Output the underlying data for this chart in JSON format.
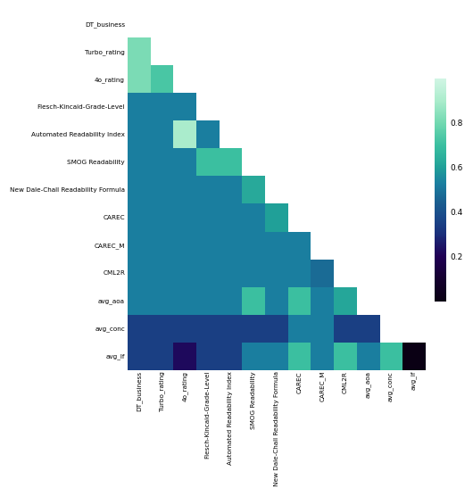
{
  "labels": [
    "DT_business",
    "Turbo_rating",
    "4o_rating",
    "Flesch-Kincaid-Grade-Level",
    "Automated Readability Index",
    "SMOG Readability",
    "New Dale-Chall Readability Formula",
    "CAREC",
    "CAREC_M",
    "CML2R",
    "avg_aoa",
    "avg_conc",
    "avg_lf"
  ],
  "matrix": [
    [
      null,
      null,
      null,
      null,
      null,
      null,
      null,
      null,
      null,
      null,
      null,
      null,
      null
    ],
    [
      0.82,
      null,
      null,
      null,
      null,
      null,
      null,
      null,
      null,
      null,
      null,
      null,
      null
    ],
    [
      0.82,
      0.73,
      null,
      null,
      null,
      null,
      null,
      null,
      null,
      null,
      null,
      null,
      null
    ],
    [
      0.53,
      0.53,
      0.53,
      null,
      null,
      null,
      null,
      null,
      null,
      null,
      null,
      null,
      null
    ],
    [
      0.53,
      0.53,
      0.9,
      0.53,
      null,
      null,
      null,
      null,
      null,
      null,
      null,
      null,
      null
    ],
    [
      0.53,
      0.53,
      0.53,
      0.7,
      0.7,
      null,
      null,
      null,
      null,
      null,
      null,
      null,
      null
    ],
    [
      0.53,
      0.53,
      0.53,
      0.53,
      0.53,
      0.63,
      null,
      null,
      null,
      null,
      null,
      null,
      null
    ],
    [
      0.53,
      0.53,
      0.53,
      0.53,
      0.53,
      0.53,
      0.6,
      null,
      null,
      null,
      null,
      null,
      null
    ],
    [
      0.53,
      0.53,
      0.53,
      0.53,
      0.53,
      0.53,
      0.53,
      0.53,
      null,
      null,
      null,
      null,
      null
    ],
    [
      0.53,
      0.53,
      0.53,
      0.53,
      0.53,
      0.53,
      0.53,
      0.53,
      0.48,
      null,
      null,
      null,
      null
    ],
    [
      0.53,
      0.53,
      0.53,
      0.53,
      0.53,
      0.7,
      0.53,
      0.7,
      0.53,
      0.62,
      null,
      null,
      null
    ],
    [
      0.35,
      0.35,
      0.35,
      0.35,
      0.35,
      0.35,
      0.35,
      0.53,
      0.53,
      0.35,
      0.35,
      null,
      null
    ],
    [
      0.35,
      0.35,
      0.22,
      0.35,
      0.35,
      0.53,
      0.53,
      0.7,
      0.53,
      0.7,
      0.53,
      0.7,
      0.0
    ]
  ],
  "colorbar_ticks": [
    0.2,
    0.4,
    0.6,
    0.8
  ],
  "vmin": 0.0,
  "vmax": 1.0,
  "figsize": [
    5.3,
    5.56
  ],
  "dpi": 100,
  "cmap_nodes": [
    [
      0.0,
      "#0a0014"
    ],
    [
      0.1,
      "#150030"
    ],
    [
      0.2,
      "#200055"
    ],
    [
      0.3,
      "#1a2e7a"
    ],
    [
      0.38,
      "#1a4a8a"
    ],
    [
      0.45,
      "#1a6090"
    ],
    [
      0.53,
      "#1a7fa0"
    ],
    [
      0.6,
      "#20a098"
    ],
    [
      0.7,
      "#3abfa0"
    ],
    [
      0.8,
      "#70d8b0"
    ],
    [
      0.9,
      "#aaeccc"
    ],
    [
      1.0,
      "#d0f5e4"
    ]
  ]
}
